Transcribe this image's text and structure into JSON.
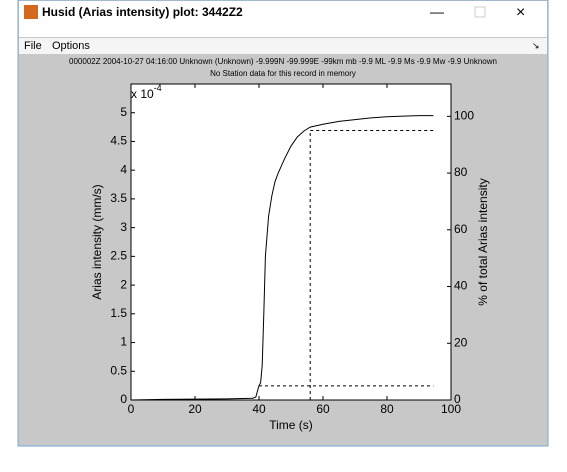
{
  "window": {
    "title": "Husid (Arias intensity) plot: 3442Z2",
    "menu": [
      "File",
      "Options"
    ]
  },
  "chart_data": {
    "type": "line",
    "title": "000002Z 2004-10-27 04:16:00 Unknown (Unknown) -9.999N -99.999E -99km  mb -9.9 ML -9.9 Ms -9.9 Mw -9.9 Unknown",
    "subtitle": "No Station data for this record in memory",
    "x_label": "Time (s)",
    "y_label": "Arias intensity (mm/s)",
    "y2_label": "% of total Arias intensity",
    "y_exponent_base": "x 10",
    "y_exponent": -4,
    "x": [
      0,
      10,
      20,
      30,
      38,
      39,
      40,
      40.5,
      41,
      41.5,
      42,
      43,
      44,
      45,
      46,
      48,
      50,
      52,
      54,
      56,
      60,
      65,
      70,
      75,
      80,
      85,
      90,
      94.5
    ],
    "series": [
      {
        "name": "Arias intensity",
        "color": "#000000",
        "values": [
          0,
          0.01,
          0.015,
          0.02,
          0.03,
          0.05,
          0.25,
          0.3,
          0.6,
          1.5,
          2.5,
          3.2,
          3.55,
          3.8,
          3.95,
          4.2,
          4.42,
          4.58,
          4.68,
          4.75,
          4.8,
          4.85,
          4.88,
          4.91,
          4.93,
          4.94,
          4.95,
          4.95
        ]
      }
    ],
    "thresholds": [
      5,
      95
    ],
    "threshold_times": [
      40,
      56
    ],
    "xlim": [
      0,
      100
    ],
    "xticks": [
      0,
      20,
      40,
      60,
      80,
      100
    ],
    "ylim": [
      0,
      5.5
    ],
    "yticks": [
      0,
      0.5,
      1,
      1.5,
      2,
      2.5,
      3,
      3.5,
      4,
      4.5,
      5
    ],
    "y2lim": [
      0,
      111.4
    ],
    "y2ticks": [
      0,
      20,
      40,
      60,
      80,
      100
    ]
  }
}
